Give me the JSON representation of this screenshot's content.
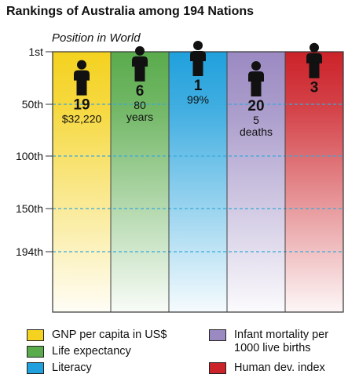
{
  "title": "Rankings of Australia among 194 Nations",
  "chart_data": {
    "type": "bar",
    "ylabel": "Position in World",
    "y_axis": {
      "ticks": [
        "1st",
        "50th",
        "100th",
        "150th",
        "194th"
      ],
      "tick_values": [
        1,
        50,
        100,
        150,
        194
      ],
      "inverted": true
    },
    "categories": [
      "GNP per capita in US$",
      "Life expectancy",
      "Literacy",
      "Infant mortality per 1000 live births",
      "Human dev. index"
    ],
    "values": [
      19,
      6,
      1,
      20,
      3
    ],
    "value_labels": [
      "19",
      "6",
      "1",
      "20",
      "3"
    ],
    "sub_labels": [
      [
        "$32,220"
      ],
      [
        "80",
        "years"
      ],
      [
        "99%"
      ],
      [
        "5",
        "deaths"
      ],
      []
    ],
    "colors": [
      "#f4d21f",
      "#5aab4c",
      "#20a0dc",
      "#9b8ac2",
      "#cc2229"
    ],
    "gridlines": "dashed",
    "legend": [
      {
        "label": "GNP per capita in US$",
        "color": "#f4d21f"
      },
      {
        "label": "Life expectancy",
        "color": "#5aab4c"
      },
      {
        "label": "Literacy",
        "color": "#20a0dc"
      },
      {
        "label": "Infant mortality per\n1000 live births",
        "color": "#9b8ac2"
      },
      {
        "label": "Human dev. index",
        "color": "#cc2229"
      }
    ],
    "legend_position": "bottom"
  }
}
